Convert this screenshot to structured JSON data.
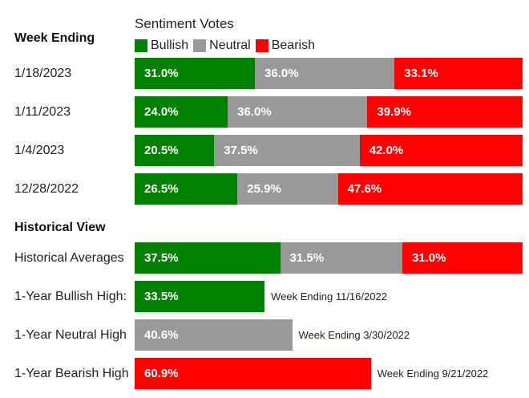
{
  "colors": {
    "bullish": "#008000",
    "neutral": "#999999",
    "bearish": "#ff0000"
  },
  "legend": {
    "title": "Sentiment Votes",
    "items": [
      {
        "label": "Bullish",
        "color": "#008000"
      },
      {
        "label": "Neutral",
        "color": "#999999"
      },
      {
        "label": "Bearish",
        "color": "#ff0000"
      }
    ]
  },
  "weekly": {
    "heading": "Week Ending",
    "rows": [
      {
        "label": "1/18/2023",
        "bullish": 31.0,
        "neutral": 36.0,
        "bearish": 33.1
      },
      {
        "label": "1/11/2023",
        "bullish": 24.0,
        "neutral": 36.0,
        "bearish": 39.9
      },
      {
        "label": "1/4/2023",
        "bullish": 20.5,
        "neutral": 37.5,
        "bearish": 42.0
      },
      {
        "label": "12/28/2022",
        "bullish": 26.5,
        "neutral": 25.9,
        "bearish": 47.6
      }
    ]
  },
  "historical": {
    "heading": "Historical View",
    "averages": {
      "label": "Historical Averages",
      "bullish": 37.5,
      "neutral": 31.5,
      "bearish": 31.0
    },
    "highs": [
      {
        "label": "1-Year Bullish High:",
        "kind": "bullish",
        "value": 33.5,
        "note": "Week Ending 11/16/2022"
      },
      {
        "label": "1-Year Neutral High",
        "kind": "neutral",
        "value": 40.6,
        "note": "Week Ending 3/30/2022"
      },
      {
        "label": "1-Year Bearish High",
        "kind": "bearish",
        "value": 60.9,
        "note": "Week Ending 9/21/2022"
      }
    ]
  },
  "chart_data": {
    "type": "bar",
    "stacked": true,
    "orientation": "horizontal",
    "categories": [
      "1/18/2023",
      "1/11/2023",
      "1/4/2023",
      "12/28/2022",
      "Historical Averages"
    ],
    "series": [
      {
        "name": "Bullish",
        "values": [
          31.0,
          24.0,
          20.5,
          26.5,
          37.5
        ]
      },
      {
        "name": "Neutral",
        "values": [
          36.0,
          36.0,
          37.5,
          25.9,
          31.5
        ]
      },
      {
        "name": "Bearish",
        "values": [
          33.1,
          39.9,
          42.0,
          47.6,
          31.0
        ]
      }
    ],
    "highs": [
      {
        "category": "1-Year Bullish High:",
        "value": 33.5
      },
      {
        "category": "1-Year Neutral High",
        "value": 40.6
      },
      {
        "category": "1-Year Bearish High",
        "value": 60.9
      }
    ],
    "title": "Sentiment Votes",
    "legend": "top"
  }
}
